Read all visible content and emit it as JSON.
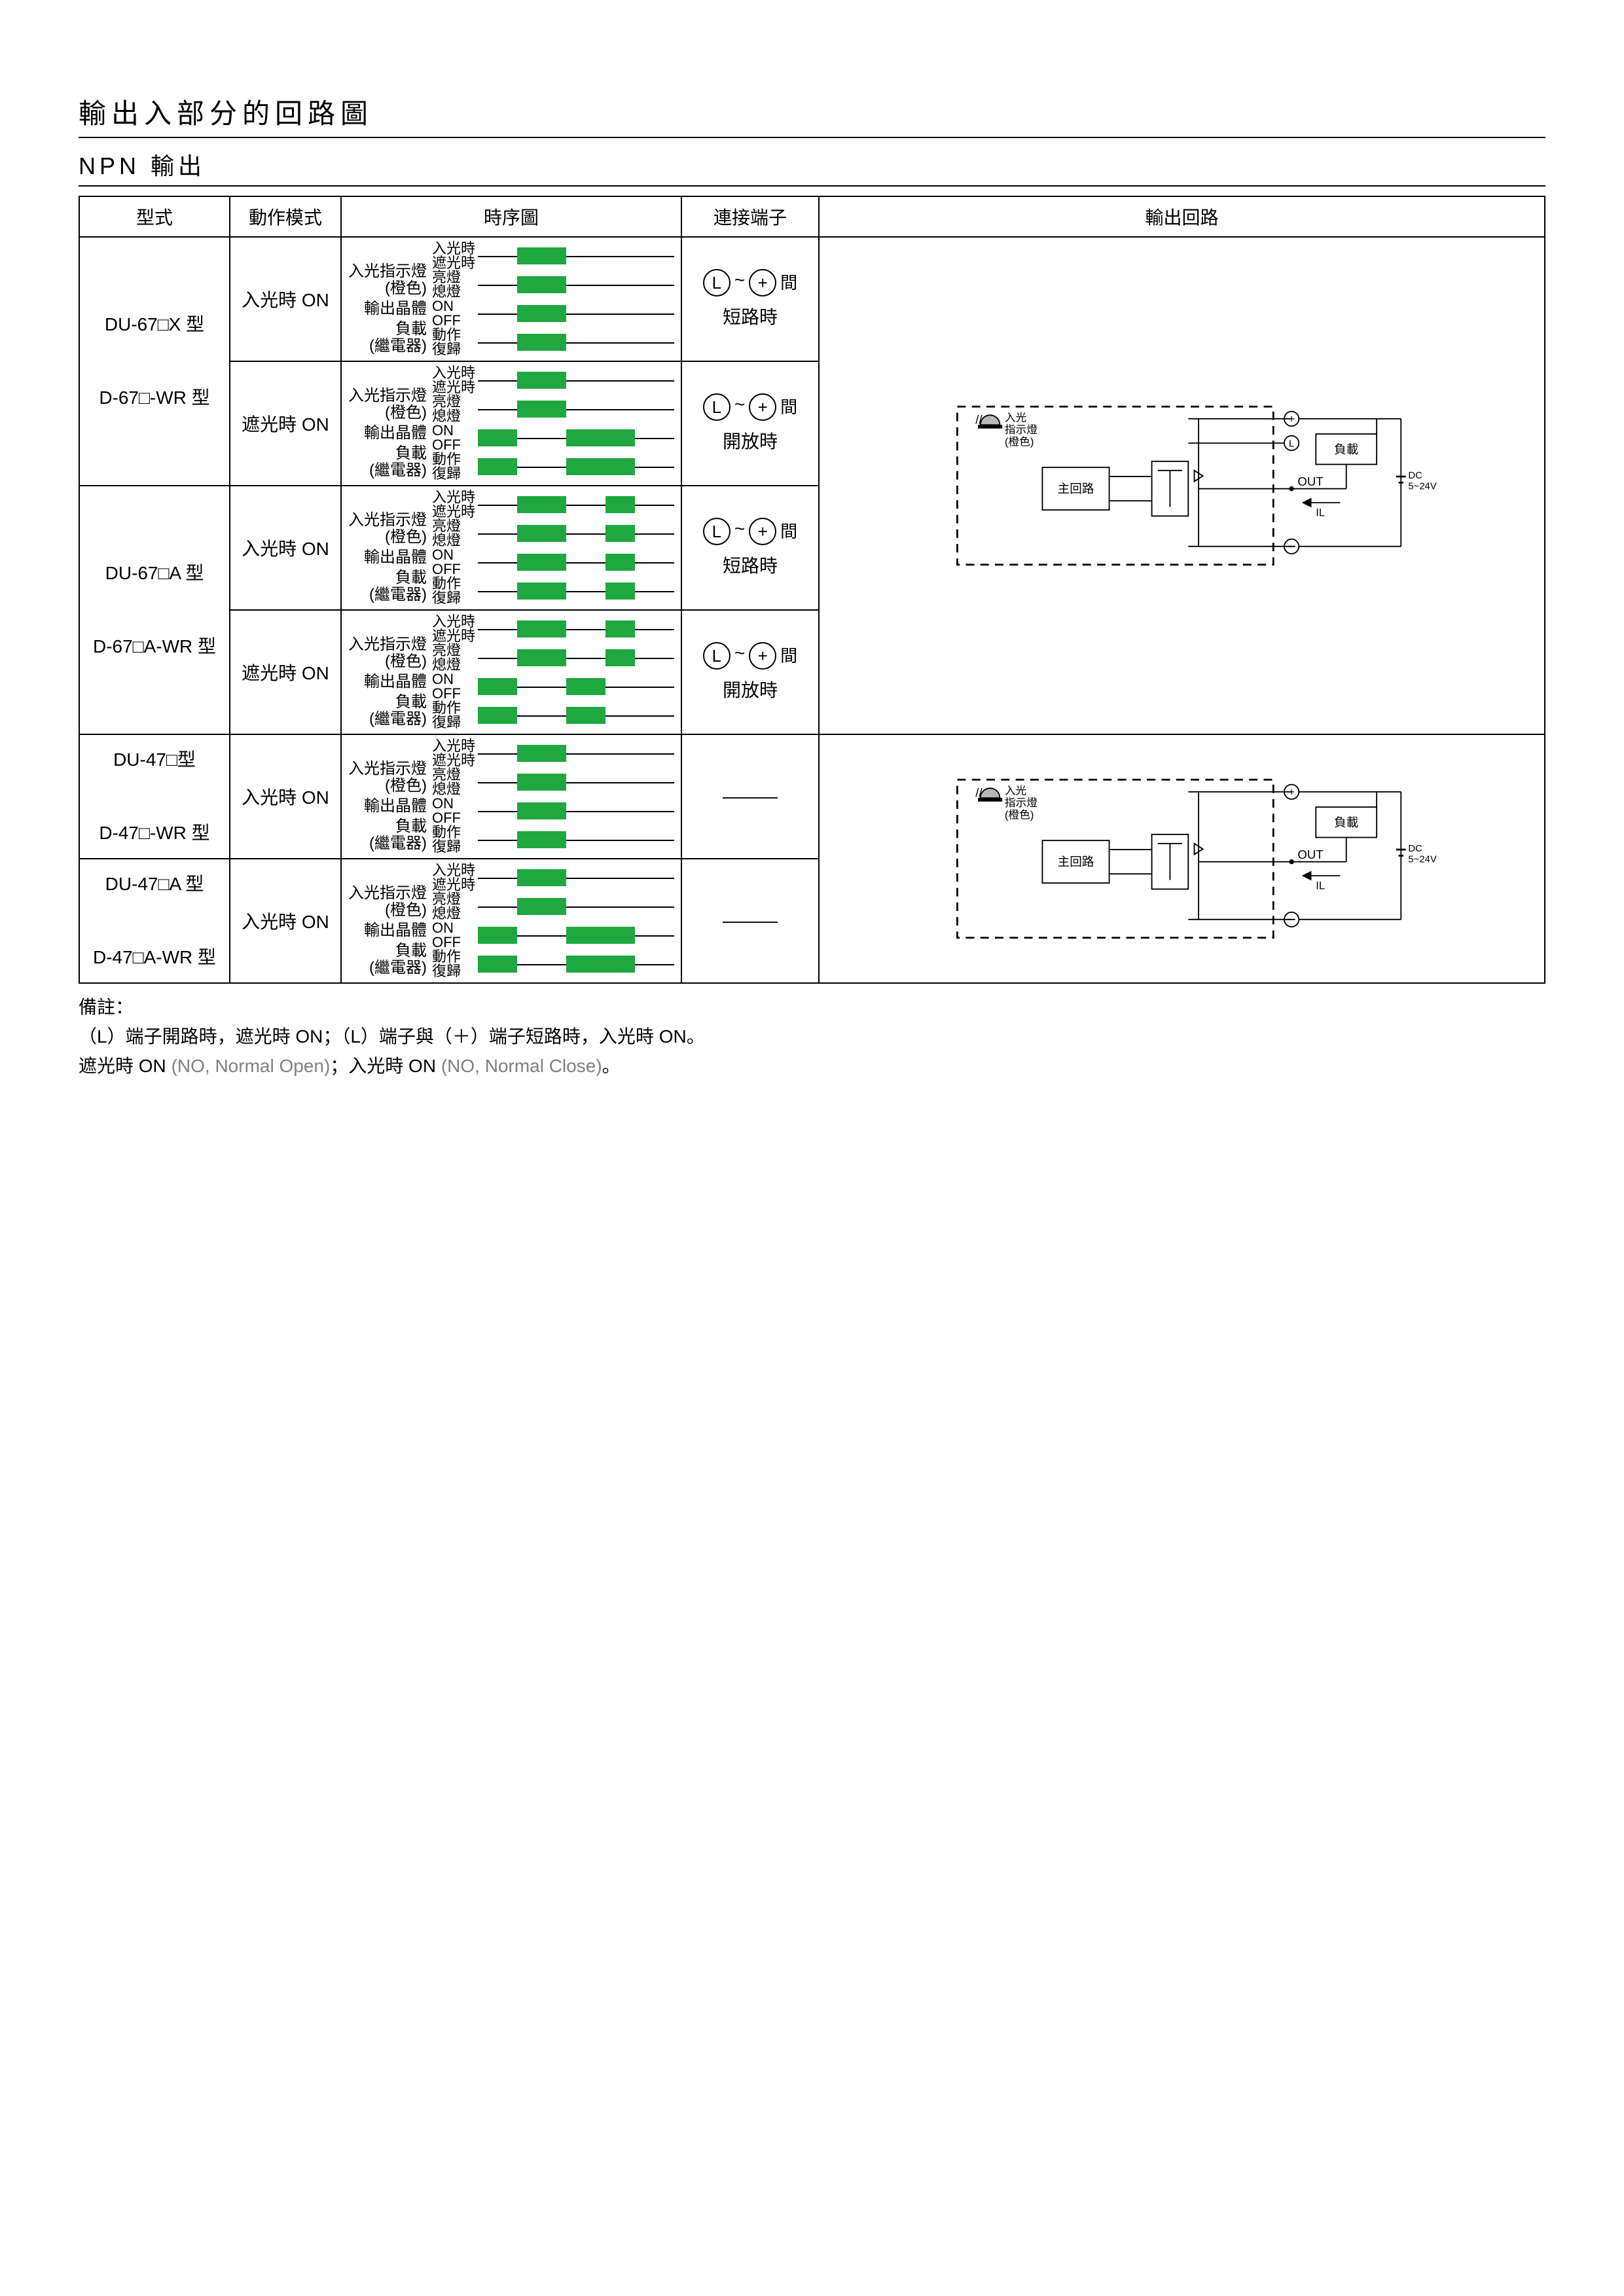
{
  "title": "輸出入部分的回路圖",
  "subtitle": "NPN 輸出",
  "headers": {
    "model": "型式",
    "mode": "動作模式",
    "timing": "時序圖",
    "terminal": "連接端子",
    "circuit": "輸出回路"
  },
  "timing_label_groups": [
    {
      "main": "",
      "lines": [
        "入光時",
        "遮光時"
      ]
    },
    {
      "main": "入光指示燈",
      "sub": "(橙色)",
      "lines": [
        "亮燈",
        "熄燈"
      ]
    },
    {
      "main": "輸出晶體",
      "lines": [
        "ON",
        "OFF"
      ]
    },
    {
      "main": "負載",
      "sub": "(繼電器)",
      "lines": [
        "動作",
        "復歸"
      ]
    }
  ],
  "timing_patterns": {
    "A": [
      [
        [
          20,
          45
        ]
      ],
      [
        [
          20,
          45
        ]
      ],
      [
        [
          20,
          45
        ]
      ],
      [
        [
          20,
          45
        ]
      ]
    ],
    "B": [
      [
        [
          20,
          45
        ]
      ],
      [
        [
          20,
          45
        ]
      ],
      [
        [
          0,
          20
        ],
        [
          45,
          80
        ]
      ],
      [
        [
          0,
          20
        ],
        [
          45,
          80
        ]
      ]
    ],
    "C": [
      [
        [
          20,
          45
        ],
        [
          65,
          80
        ]
      ],
      [
        [
          20,
          45
        ],
        [
          65,
          80
        ]
      ],
      [
        [
          20,
          45
        ],
        [
          65,
          80
        ]
      ],
      [
        [
          20,
          45
        ],
        [
          65,
          80
        ]
      ]
    ],
    "D": [
      [
        [
          20,
          45
        ],
        [
          65,
          80
        ]
      ],
      [
        [
          20,
          45
        ],
        [
          65,
          80
        ]
      ],
      [
        [
          0,
          20
        ],
        [
          45,
          65
        ]
      ],
      [
        [
          0,
          20
        ],
        [
          45,
          65
        ]
      ]
    ]
  },
  "rows": [
    {
      "models": [
        "DU-67□X 型",
        "D-67□-WR 型"
      ],
      "sub": [
        {
          "mode": "入光時 ON",
          "pattern": "A",
          "term_text": "短路時",
          "term_sym": true
        },
        {
          "mode": "遮光時 ON",
          "pattern": "B",
          "term_text": "開放時",
          "term_sym": true
        }
      ],
      "circuit_group": 1
    },
    {
      "models": [
        "DU-67□A 型",
        "D-67□A-WR 型"
      ],
      "sub": [
        {
          "mode": "入光時 ON",
          "pattern": "C",
          "term_text": "短路時",
          "term_sym": true
        },
        {
          "mode": "遮光時 ON",
          "pattern": "D",
          "term_text": "開放時",
          "term_sym": true
        }
      ],
      "circuit_group": 1
    },
    {
      "models": [
        "DU-47□型",
        "D-47□-WR 型"
      ],
      "sub": [
        {
          "mode": "入光時 ON",
          "pattern": "A",
          "term_text": "———",
          "term_sym": false
        }
      ],
      "circuit_group": 2
    },
    {
      "models": [
        "DU-47□A 型",
        "D-47□A-WR 型"
      ],
      "sub": [
        {
          "mode": "入光時 ON",
          "pattern": "B",
          "term_text": "———",
          "term_sym": false
        }
      ],
      "circuit_group": 2
    }
  ],
  "circuit": {
    "led_label1": "入光",
    "led_label2": "指示燈",
    "led_label3": "(橙色)",
    "main_block": "主回路",
    "load": "負載",
    "out": "OUT",
    "il": "←IL",
    "dc": "DC",
    "dcv": "5~24V",
    "show_L_terminal_group1": true
  },
  "colors": {
    "bar": "#1fa83f",
    "line": "#000000",
    "led": "#b9b8b6"
  },
  "notes": {
    "l1": "備註：",
    "l2": "（L）端子開路時，遮光時 ON；（L）端子與（＋）端子短路時，入光時 ON。",
    "l3a": "遮光時 ON ",
    "l3b": "(NO, Normal Open)",
    "l3c": "；入光時 ON ",
    "l3d": "(NO, Normal Close)",
    "l3e": "。"
  }
}
